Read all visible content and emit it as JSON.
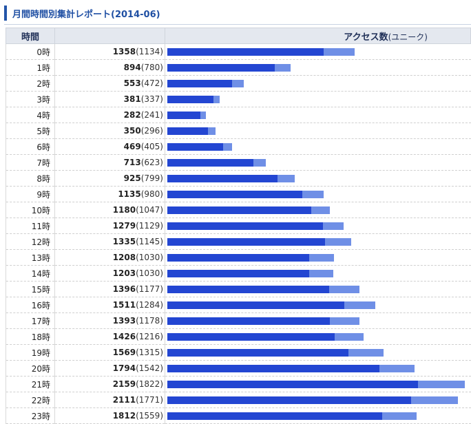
{
  "header": {
    "title": "月間時間別集計レポート(2014-06)"
  },
  "table": {
    "col_hour": "時間",
    "col_access": "アクセス数",
    "col_access_sub": "(ユニーク)"
  },
  "colors": {
    "bar_total": "#6f8fe6",
    "bar_unique": "#2346d2",
    "title_text": "#1f4fa3"
  },
  "chart_data": {
    "type": "bar",
    "orientation": "horizontal",
    "xlim": [
      0,
      2200
    ],
    "series": [
      {
        "name": "アクセス数",
        "values": [
          1358,
          894,
          553,
          381,
          282,
          350,
          469,
          713,
          925,
          1135,
          1180,
          1279,
          1335,
          1208,
          1203,
          1396,
          1511,
          1393,
          1426,
          1569,
          1794,
          2159,
          2111,
          1812
        ]
      },
      {
        "name": "ユニーク",
        "values": [
          1134,
          780,
          472,
          337,
          241,
          296,
          405,
          623,
          799,
          980,
          1047,
          1129,
          1145,
          1030,
          1030,
          1177,
          1284,
          1178,
          1216,
          1315,
          1542,
          1822,
          1771,
          1559
        ]
      }
    ],
    "rows": [
      {
        "hour": "0時",
        "total": "1358",
        "unique": "(1134)"
      },
      {
        "hour": "1時",
        "total": "894",
        "unique": "(780)"
      },
      {
        "hour": "2時",
        "total": "553",
        "unique": "(472)"
      },
      {
        "hour": "3時",
        "total": "381",
        "unique": "(337)"
      },
      {
        "hour": "4時",
        "total": "282",
        "unique": "(241)"
      },
      {
        "hour": "5時",
        "total": "350",
        "unique": "(296)"
      },
      {
        "hour": "6時",
        "total": "469",
        "unique": "(405)"
      },
      {
        "hour": "7時",
        "total": "713",
        "unique": "(623)"
      },
      {
        "hour": "8時",
        "total": "925",
        "unique": "(799)"
      },
      {
        "hour": "9時",
        "total": "1135",
        "unique": "(980)"
      },
      {
        "hour": "10時",
        "total": "1180",
        "unique": "(1047)"
      },
      {
        "hour": "11時",
        "total": "1279",
        "unique": "(1129)"
      },
      {
        "hour": "12時",
        "total": "1335",
        "unique": "(1145)"
      },
      {
        "hour": "13時",
        "total": "1208",
        "unique": "(1030)"
      },
      {
        "hour": "14時",
        "total": "1203",
        "unique": "(1030)"
      },
      {
        "hour": "15時",
        "total": "1396",
        "unique": "(1177)"
      },
      {
        "hour": "16時",
        "total": "1511",
        "unique": "(1284)"
      },
      {
        "hour": "17時",
        "total": "1393",
        "unique": "(1178)"
      },
      {
        "hour": "18時",
        "total": "1426",
        "unique": "(1216)"
      },
      {
        "hour": "19時",
        "total": "1569",
        "unique": "(1315)"
      },
      {
        "hour": "20時",
        "total": "1794",
        "unique": "(1542)"
      },
      {
        "hour": "21時",
        "total": "2159",
        "unique": "(1822)"
      },
      {
        "hour": "22時",
        "total": "2111",
        "unique": "(1771)"
      },
      {
        "hour": "23時",
        "total": "1812",
        "unique": "(1559)"
      }
    ]
  }
}
